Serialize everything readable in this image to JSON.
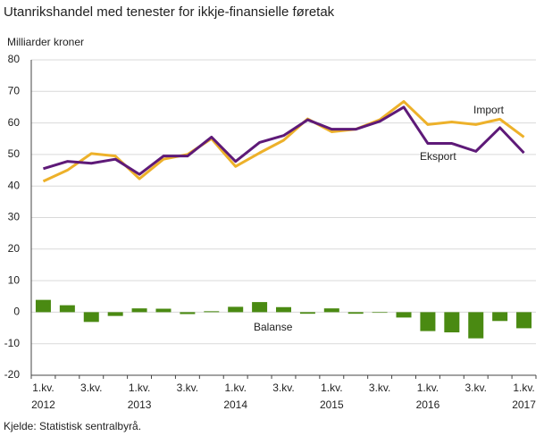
{
  "chart_data": {
    "type": "combo",
    "title": "Utanrikshandel med tenester for ikkje-finansielle føretak",
    "y_label": "Milliarder  kroner",
    "source": "Kjelde: Statistisk sentralbyrå.",
    "categories": [
      "1.kv.",
      null,
      "3.kv.",
      null,
      "1.kv.",
      null,
      "3.kv.",
      null,
      "1.kv.",
      null,
      "3.kv.",
      null,
      "1.kv.",
      null,
      "3.kv.",
      null,
      "1.kv.",
      null,
      "3.kv.",
      null,
      "1.kv."
    ],
    "years": [
      "2012",
      null,
      null,
      null,
      "2013",
      null,
      null,
      null,
      "2014",
      null,
      null,
      null,
      "2015",
      null,
      null,
      null,
      "2016",
      null,
      null,
      null,
      "2017"
    ],
    "series": [
      {
        "name": "Import",
        "type": "line",
        "color": "#edb12a",
        "values": [
          41.5,
          45,
          50.3,
          49.5,
          42.3,
          48.5,
          50,
          55,
          46.2,
          50.5,
          54.5,
          61.3,
          57.2,
          58,
          61,
          66.8,
          59.5,
          60.3,
          59.5,
          61.2,
          55.5
        ]
      },
      {
        "name": "Eksport",
        "type": "line",
        "color": "#5e1a78",
        "values": [
          45.5,
          47.8,
          47.2,
          48.5,
          43.7,
          49.5,
          49.5,
          55.5,
          47.8,
          53.8,
          56,
          61,
          58,
          58,
          60.5,
          65,
          53.5,
          53.5,
          51,
          58.5,
          50.5
        ]
      },
      {
        "name": "Balanse",
        "type": "bar",
        "color": "#4a8a12",
        "values": [
          3.9,
          2.2,
          -3.1,
          -1.2,
          1.2,
          1.1,
          -0.6,
          0.3,
          1.7,
          3.2,
          1.6,
          -0.5,
          1.2,
          -0.5,
          -0.2,
          -1.7,
          -6,
          -6.4,
          -8.3,
          -2.8,
          -5.1
        ]
      }
    ],
    "ylim": [
      -20,
      80
    ],
    "yticks": [
      -20,
      -10,
      0,
      10,
      20,
      30,
      40,
      50,
      60,
      70,
      80
    ],
    "grid": true
  }
}
